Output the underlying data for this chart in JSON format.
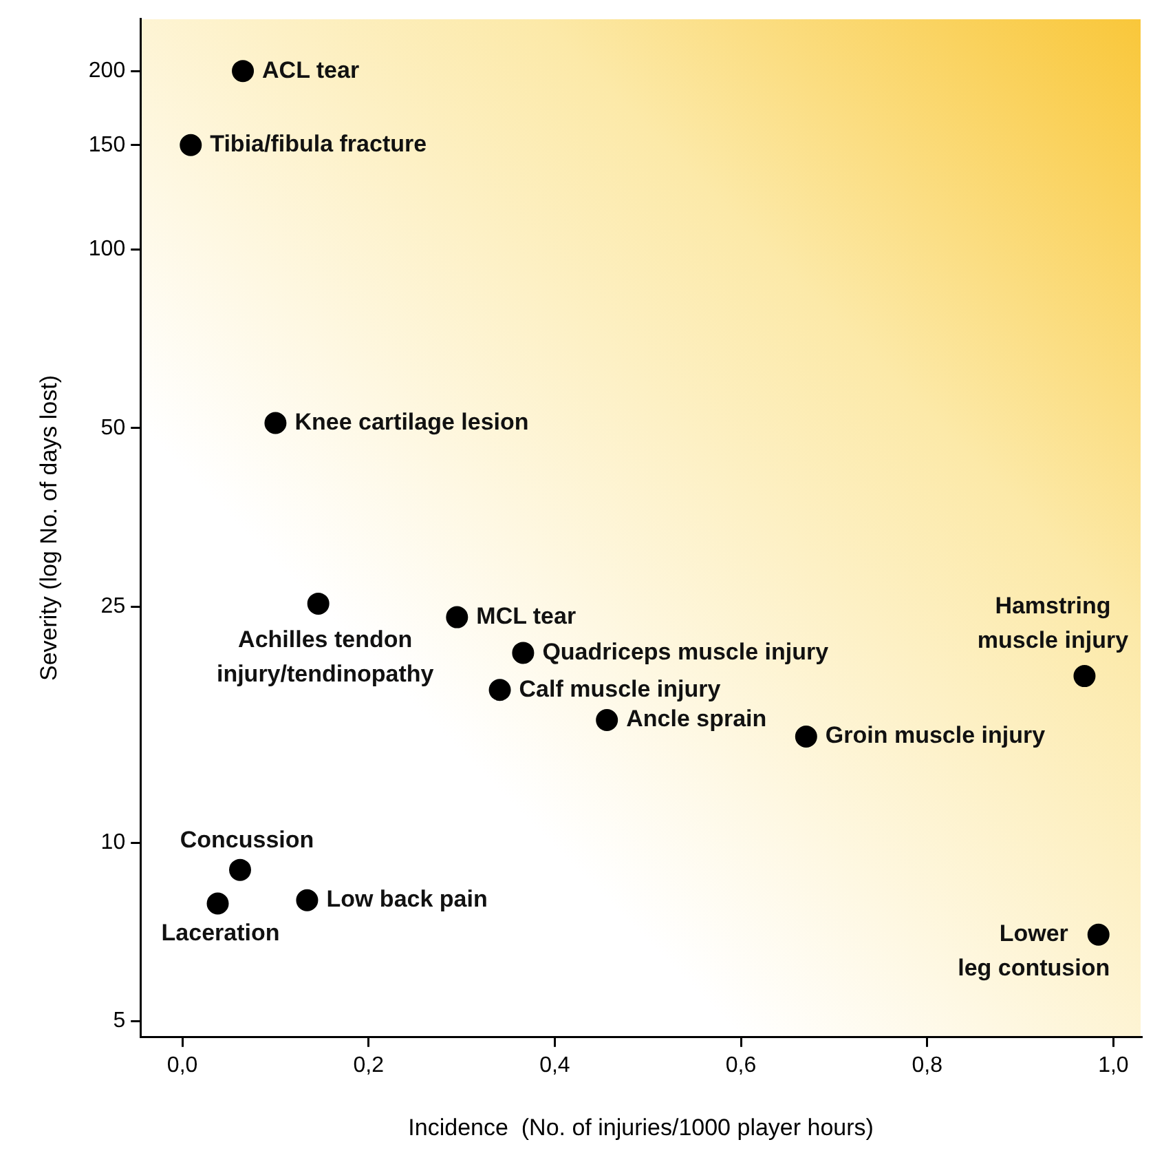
{
  "chart_data": {
    "type": "scatter",
    "xlabel": "Incidence  (No. of injuries/1000 player hours)",
    "ylabel": "Severity (log No. of days lost)",
    "log": "y",
    "marker": "circle",
    "legend": false,
    "grid": false,
    "xlim": [
      -0.045,
      1.03
    ],
    "ylim": [
      4.7,
      245
    ],
    "xticks": [
      {
        "value": 0,
        "label": "0,0"
      },
      {
        "value": 0.2,
        "label": "0,2"
      },
      {
        "value": 0.4,
        "label": "0,4"
      },
      {
        "value": 0.6,
        "label": "0,6"
      },
      {
        "value": 0.8,
        "label": "0,8"
      },
      {
        "value": 1,
        "label": "1,0"
      }
    ],
    "yticks": [
      5,
      10,
      25,
      50,
      100,
      150,
      200
    ],
    "series": [
      {
        "name": "ACL tear",
        "color": "#000000",
        "x": [
          0.065
        ],
        "values": [
          200
        ]
      },
      {
        "name": "Tibia/fibula fracture",
        "color": "#000000",
        "x": [
          0.009
        ],
        "values": [
          150
        ]
      },
      {
        "name": "Knee cartilage lesion",
        "color": "#000000",
        "x": [
          0.1
        ],
        "values": [
          51
        ]
      },
      {
        "name": "Achilles tendon\ninjury/tendinopathy",
        "color": "#000000",
        "x": [
          0.146
        ],
        "values": [
          25.3
        ]
      },
      {
        "name": "MCL tear",
        "color": "#000000",
        "x": [
          0.295
        ],
        "values": [
          24
        ]
      },
      {
        "name": "Quadriceps muscle injury",
        "color": "#000000",
        "x": [
          0.366
        ],
        "values": [
          20.9
        ]
      },
      {
        "name": "Calf muscle injury",
        "color": "#000000",
        "x": [
          0.341
        ],
        "values": [
          18.1
        ]
      },
      {
        "name": "Ancle sprain",
        "color": "#000000",
        "x": [
          0.456
        ],
        "values": [
          16.1
        ]
      },
      {
        "name": "Groin muscle injury",
        "color": "#000000",
        "x": [
          0.67
        ],
        "values": [
          15.1
        ]
      },
      {
        "name": "Hamstring\nmuscle injury",
        "color": "#000000",
        "x": [
          0.969
        ],
        "values": [
          19.1
        ]
      },
      {
        "name": "Concussion",
        "color": "#000000",
        "x": [
          0.062
        ],
        "values": [
          9.0
        ]
      },
      {
        "name": "Laceration",
        "color": "#000000",
        "x": [
          0.038
        ],
        "values": [
          7.9
        ]
      },
      {
        "name": "Low back pain",
        "color": "#000000",
        "x": [
          0.134
        ],
        "values": [
          8.0
        ]
      },
      {
        "name": "Lower\nleg contusion",
        "color": "#000000",
        "x": [
          0.984
        ],
        "values": [
          7.0
        ]
      }
    ]
  }
}
